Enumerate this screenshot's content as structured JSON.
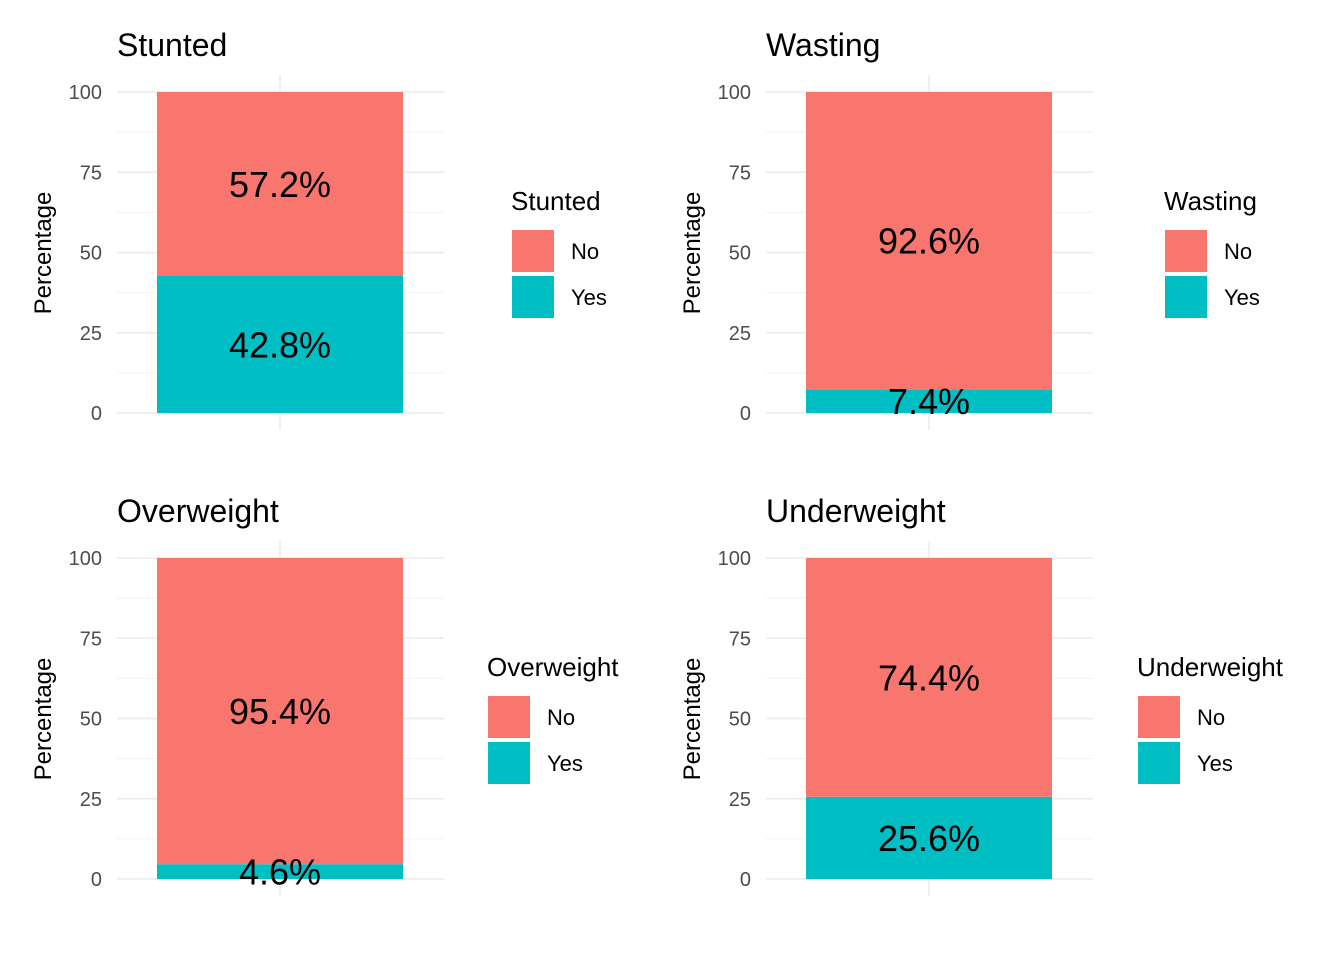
{
  "chart_data": [
    {
      "type": "bar",
      "stacked": true,
      "title": "Stunted",
      "xlabel": "",
      "ylabel": "Percentage",
      "ylim": [
        0,
        100
      ],
      "yticks": [
        "0",
        "25",
        "50",
        "75",
        "100"
      ],
      "legend": {
        "title": "Stunted",
        "position": "right",
        "entries": [
          "No",
          "Yes"
        ]
      },
      "series": [
        {
          "name": "Yes",
          "value": 42.8,
          "label": "42.8%",
          "color": "#00BFC4"
        },
        {
          "name": "No",
          "value": 57.2,
          "label": "57.2%",
          "color": "#F8766D"
        }
      ]
    },
    {
      "type": "bar",
      "stacked": true,
      "title": "Wasting",
      "xlabel": "",
      "ylabel": "Percentage",
      "ylim": [
        0,
        100
      ],
      "yticks": [
        "0",
        "25",
        "50",
        "75",
        "100"
      ],
      "legend": {
        "title": "Wasting",
        "position": "right",
        "entries": [
          "No",
          "Yes"
        ]
      },
      "series": [
        {
          "name": "Yes",
          "value": 7.4,
          "label": "7.4%",
          "color": "#00BFC4"
        },
        {
          "name": "No",
          "value": 92.6,
          "label": "92.6%",
          "color": "#F8766D"
        }
      ]
    },
    {
      "type": "bar",
      "stacked": true,
      "title": "Overweight",
      "xlabel": "",
      "ylabel": "Percentage",
      "ylim": [
        0,
        100
      ],
      "yticks": [
        "0",
        "25",
        "50",
        "75",
        "100"
      ],
      "legend": {
        "title": "Overweight",
        "position": "right",
        "entries": [
          "No",
          "Yes"
        ]
      },
      "series": [
        {
          "name": "Yes",
          "value": 4.6,
          "label": "4.6%",
          "color": "#00BFC4"
        },
        {
          "name": "No",
          "value": 95.4,
          "label": "95.4%",
          "color": "#F8766D"
        }
      ]
    },
    {
      "type": "bar",
      "stacked": true,
      "title": "Underweight",
      "xlabel": "",
      "ylabel": "Percentage",
      "ylim": [
        0,
        100
      ],
      "yticks": [
        "0",
        "25",
        "50",
        "75",
        "100"
      ],
      "legend": {
        "title": "Underweight",
        "position": "right",
        "entries": [
          "No",
          "Yes"
        ]
      },
      "series": [
        {
          "name": "Yes",
          "value": 25.6,
          "label": "25.6%",
          "color": "#00BFC4"
        },
        {
          "name": "No",
          "value": 74.4,
          "label": "74.4%",
          "color": "#F8766D"
        }
      ]
    }
  ]
}
